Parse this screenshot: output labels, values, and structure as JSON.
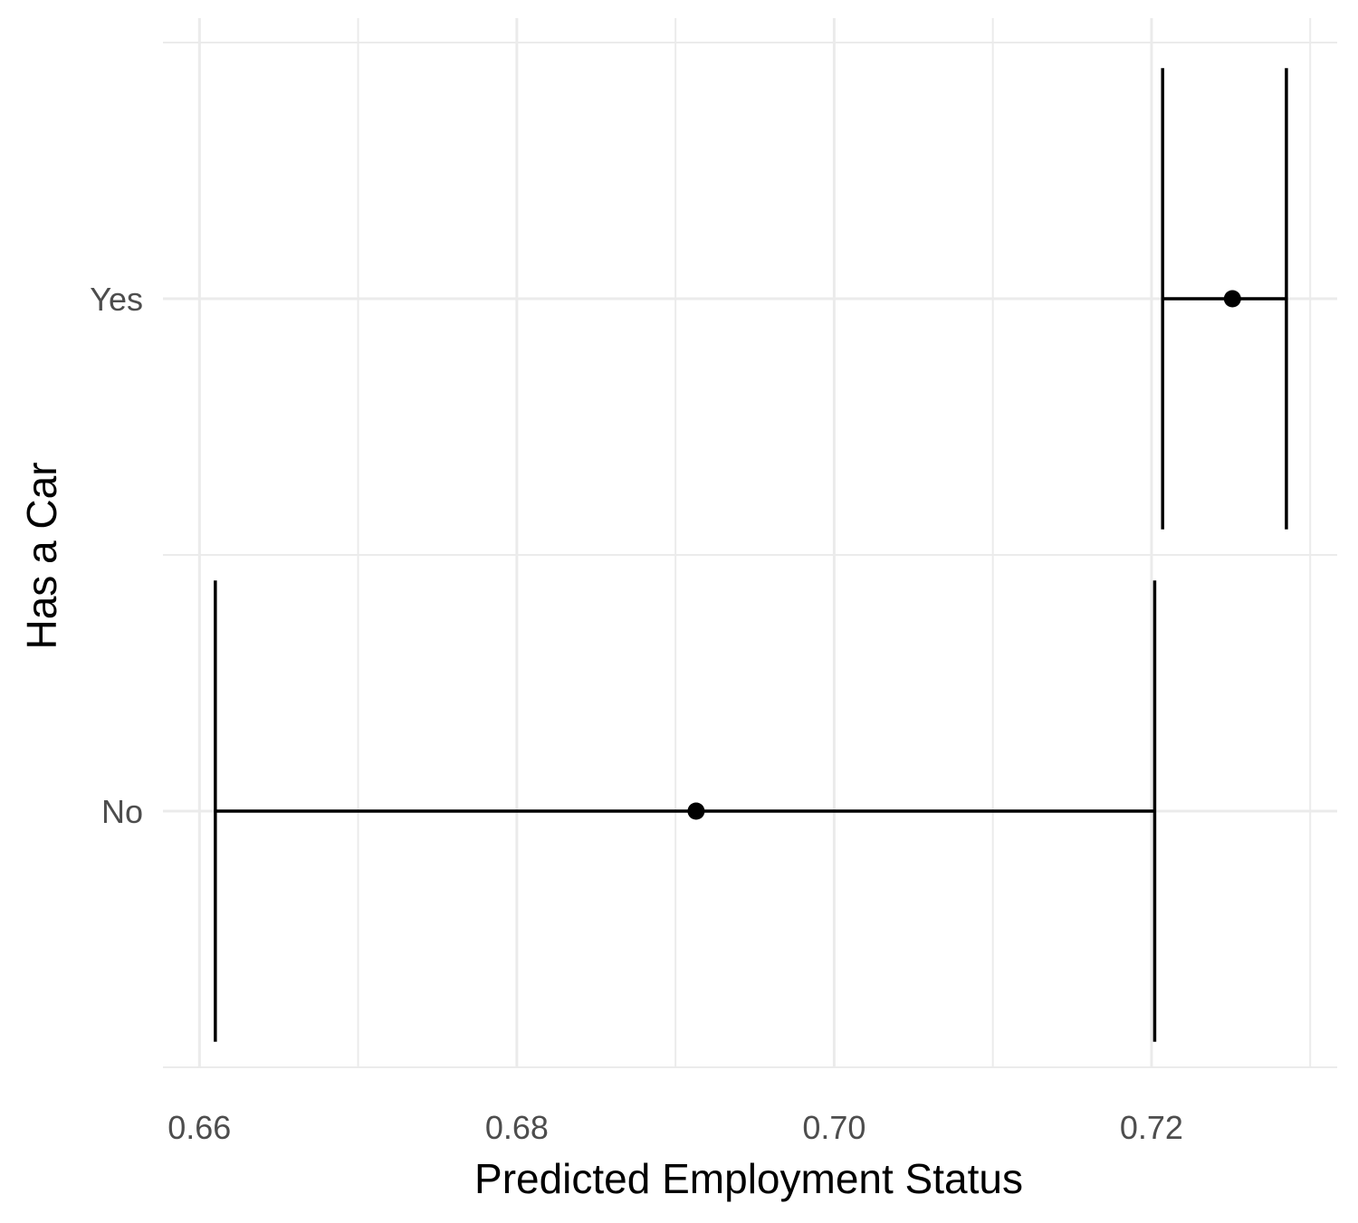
{
  "chart_data": {
    "type": "errorbar",
    "orientation": "horizontal",
    "xlabel": "Predicted Employment Status",
    "ylabel": "Has a Car",
    "xlim": [
      0.6577,
      0.7317
    ],
    "xticks": [
      0.66,
      0.68,
      0.7,
      0.72
    ],
    "xtick_labels": [
      "0.66",
      "0.68",
      "0.70",
      "0.72"
    ],
    "categories": [
      "No",
      "Yes"
    ],
    "points": [
      {
        "category": "No",
        "estimate": 0.6913,
        "lower": 0.661,
        "upper": 0.7202
      },
      {
        "category": "Yes",
        "estimate": 0.7251,
        "lower": 0.7207,
        "upper": 0.7285
      }
    ],
    "grid": true,
    "legend": "none",
    "colors": {
      "mark": "#000000",
      "grid": "#ebebeb",
      "tick_text": "#4d4d4d"
    }
  }
}
